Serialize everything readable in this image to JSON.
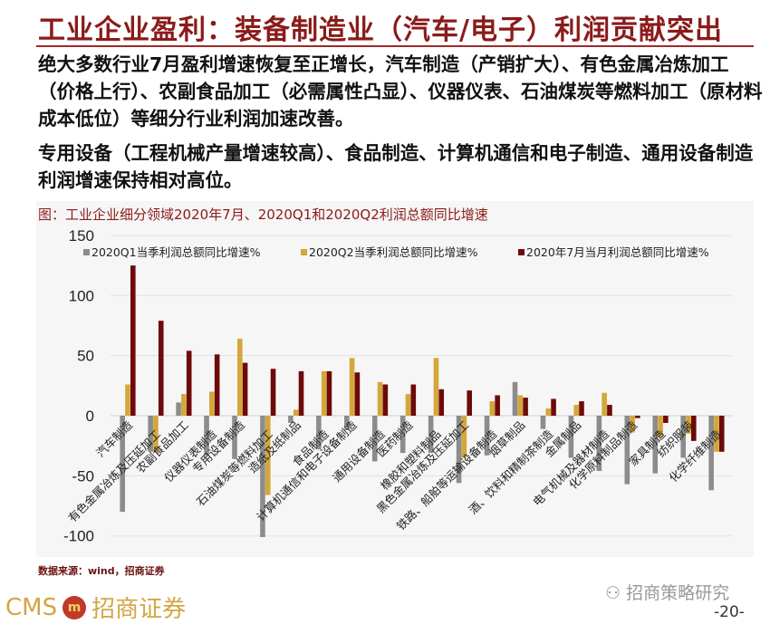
{
  "header": {
    "title": "工业企业盈利：装备制造业（汽车/电子）利润贡献突出"
  },
  "body": {
    "para1": "绝大多数行业7月盈利增速恢复至正增长，汽车制造（产销扩大）、有色金属冶炼加工（价格上行）、农副食品加工（必需属性凸显）、仪器仪表、石油煤炭等燃料加工（原材料成本低位）等细分行业利润加速改善。",
    "para2": "专用设备（工程机械产量增速较高）、食品制造、计算机通信和电子制造、通用设备制造利润增速保持相对高位。"
  },
  "chart_caption": "图：工业企业细分领域2020年7月、2020Q1和2020Q2利润总额同比增速",
  "chart_data": {
    "type": "bar",
    "title": "工业企业细分领域2020年7月、2020Q1和2020Q2利润总额同比增速",
    "ylim": [
      -100,
      150
    ],
    "yticks": [
      -100,
      -50,
      0,
      50,
      100,
      150
    ],
    "grid": true,
    "legend_position": "top",
    "categories": [
      "汽车制造",
      "有色金属冶炼及压延加工",
      "农副食品加工",
      "仪器仪表制造",
      "专用设备制造",
      "石油煤炭等燃料加工",
      "造纸及纸制品",
      "食品制造",
      "计算机通信和电子设备制造",
      "通用设备制造",
      "医药制造",
      "橡胶和塑料制品",
      "黑色金属冶炼及压延加工",
      "铁路、船舶等运输设备制造",
      "烟草制品",
      "酒、饮料和精制茶制造",
      "金属制品",
      "电气机械及器材制造",
      "化学原料制品制造",
      "家具制造",
      "纺织服装",
      "化学纤维制造"
    ],
    "series": [
      {
        "name": "2020Q1当季利润总额同比增速%",
        "color": "#8c8c8c",
        "values": [
          -80,
          -30,
          11,
          -33,
          -36,
          -101,
          -6,
          -28,
          -12,
          -38,
          -31,
          -31,
          -56,
          -33,
          28,
          -11,
          -35,
          -46,
          -57,
          -48,
          -35,
          -62
        ]
      },
      {
        "name": "2020Q2当季利润总额同比增速%",
        "color": "#d4a73a",
        "values": [
          26,
          -30,
          18,
          20,
          64,
          -66,
          5,
          37,
          48,
          28,
          18,
          48,
          -35,
          12,
          17,
          6,
          9,
          19,
          -14,
          -18,
          -15,
          -30
        ]
      },
      {
        "name": "2020年7月当月利润总额同比增速%",
        "color": "#6e0a0a",
        "values": [
          125,
          79,
          54,
          51,
          44,
          39,
          37,
          37,
          36,
          26,
          26,
          22,
          21,
          17,
          15,
          14,
          12,
          9,
          -2,
          -6,
          -21,
          -30
        ]
      }
    ]
  },
  "footer": {
    "source": "数据来源：wind，招商证券",
    "logo_text": "CMS",
    "logo_cn": "招商证券",
    "logo_badge": "m",
    "wechat": "招商策略研究",
    "page": "-20-"
  }
}
